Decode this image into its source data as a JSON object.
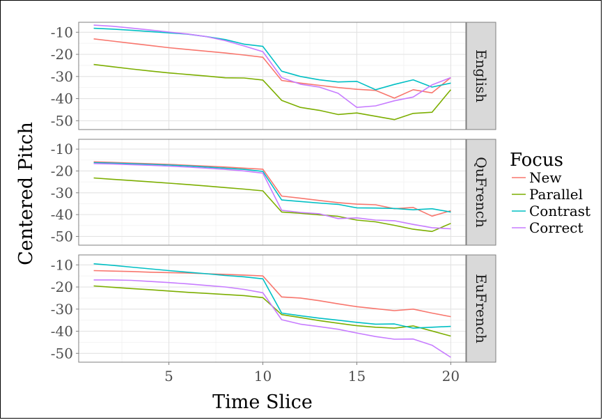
{
  "chart_data": {
    "type": "line",
    "xlabel": "Time Slice",
    "ylabel": "Centered Pitch",
    "xlim": [
      0.2,
      20.8
    ],
    "ylim": [
      -54,
      -5.5
    ],
    "x_ticks": [
      5,
      10,
      15,
      20
    ],
    "y_ticks": [
      -10,
      -20,
      -30,
      -40,
      -50
    ],
    "grid": true,
    "legend": {
      "title": "Focus",
      "placement": "right",
      "entries": [
        "New",
        "Parallel",
        "Contrast",
        "Correct"
      ]
    },
    "colors": {
      "New": "#F8766D",
      "Parallel": "#7CAE00",
      "Contrast": "#00BFC4",
      "Correct": "#C77CFF"
    },
    "x": [
      1,
      2,
      3,
      4,
      5,
      6,
      7,
      8,
      9,
      10,
      11,
      12,
      13,
      14,
      15,
      16,
      17,
      18,
      19,
      20
    ],
    "panels": [
      {
        "strip": "English",
        "series": [
          {
            "name": "New",
            "values": [
              -13,
              -14,
              -15,
              -16,
              -17,
              -17.8,
              -18.6,
              -19.4,
              -20.3,
              -21.3,
              -31.8,
              -33,
              -34,
              -35,
              -35.8,
              -36.3,
              -39.8,
              -36,
              -37.4,
              -30.5
            ]
          },
          {
            "name": "Parallel",
            "values": [
              -24.6,
              -25.6,
              -26.6,
              -27.5,
              -28.4,
              -29.1,
              -29.8,
              -30.6,
              -30.7,
              -31.6,
              -40.8,
              -44,
              -45.3,
              -47.2,
              -46.5,
              -48,
              -49.5,
              -46.7,
              -46.2,
              -36
            ]
          },
          {
            "name": "Contrast",
            "values": [
              -8.2,
              -8.6,
              -9.1,
              -9.7,
              -10.3,
              -10.9,
              -12,
              -13.3,
              -15.4,
              -16.4,
              -27.6,
              -30,
              -31.5,
              -32.5,
              -32.2,
              -36,
              -33.6,
              -31.5,
              -34.8,
              -33
            ]
          },
          {
            "name": "Correct",
            "values": [
              -6.8,
              -7.3,
              -8.1,
              -9,
              -9.9,
              -10.8,
              -12,
              -13.8,
              -16.2,
              -18.8,
              -30.5,
              -33.5,
              -34.8,
              -37.6,
              -44,
              -43.3,
              -41,
              -39.3,
              -33.8,
              -30.5
            ]
          }
        ]
      },
      {
        "strip": "QuFrench",
        "series": [
          {
            "name": "New",
            "values": [
              -15.8,
              -16.1,
              -16.4,
              -16.7,
              -17,
              -17.4,
              -17.8,
              -18.2,
              -18.7,
              -19.2,
              -31.5,
              -32.5,
              -33.5,
              -34.5,
              -35.2,
              -35.5,
              -37.3,
              -36.7,
              -40.7,
              -38.2
            ]
          },
          {
            "name": "Parallel",
            "values": [
              -23.2,
              -23.8,
              -24.4,
              -25,
              -25.6,
              -26.2,
              -26.9,
              -27.6,
              -28.3,
              -29.1,
              -38.8,
              -39.4,
              -40.1,
              -40.8,
              -42.5,
              -43.3,
              -44.9,
              -46.7,
              -47.7,
              -44
            ]
          },
          {
            "name": "Contrast",
            "values": [
              -16.2,
              -16.4,
              -16.7,
              -17,
              -17.3,
              -17.7,
              -18.2,
              -18.7,
              -19.3,
              -20.2,
              -33.3,
              -34,
              -34.7,
              -35.3,
              -36.9,
              -37,
              -37.2,
              -37.8,
              -37.3,
              -38.8
            ]
          },
          {
            "name": "Correct",
            "values": [
              -16.6,
              -16.8,
              -17.1,
              -17.4,
              -17.8,
              -18.2,
              -18.7,
              -19.3,
              -20,
              -21,
              -38,
              -39,
              -39.6,
              -41.8,
              -41.5,
              -42.5,
              -42.8,
              -44.5,
              -46,
              -46.5
            ]
          }
        ]
      },
      {
        "strip": "EuFrench",
        "series": [
          {
            "name": "New",
            "values": [
              -12.6,
              -12.8,
              -13,
              -13.3,
              -13.5,
              -13.7,
              -14,
              -14.3,
              -14.6,
              -15,
              -24.5,
              -25,
              -26.2,
              -27.6,
              -28.9,
              -29.8,
              -30.7,
              -30,
              -31.8,
              -33.4
            ]
          },
          {
            "name": "Parallel",
            "values": [
              -19.5,
              -20.1,
              -20.7,
              -21.2,
              -21.8,
              -22.4,
              -22.9,
              -23.4,
              -23.9,
              -24.8,
              -32.5,
              -33.8,
              -35.2,
              -36.4,
              -37.5,
              -38.2,
              -38.6,
              -37.6,
              -39.9,
              -42.2
            ]
          },
          {
            "name": "Contrast",
            "values": [
              -9.5,
              -10.2,
              -11,
              -11.8,
              -12.6,
              -13.3,
              -14,
              -14.8,
              -15.4,
              -16.3,
              -31.8,
              -33,
              -34.1,
              -35,
              -36,
              -36.8,
              -36.7,
              -38.6,
              -38.2,
              -37.8
            ]
          },
          {
            "name": "Correct",
            "values": [
              -16.8,
              -16.8,
              -17,
              -17.5,
              -18,
              -18.6,
              -19.3,
              -20,
              -21.1,
              -22.6,
              -34.8,
              -36.8,
              -37.9,
              -39.1,
              -40.8,
              -42.4,
              -43.6,
              -43.5,
              -46.3,
              -51.8
            ]
          }
        ]
      }
    ]
  }
}
